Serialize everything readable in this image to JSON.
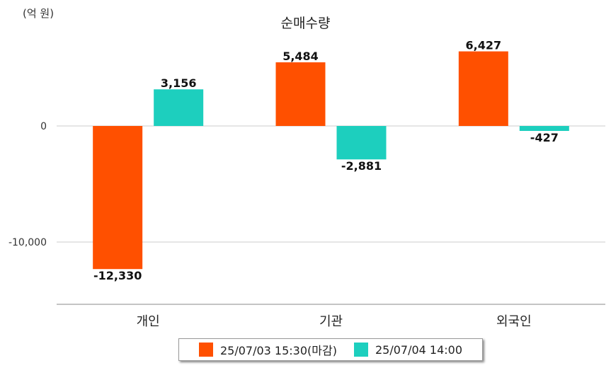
{
  "chart_data": {
    "type": "bar",
    "title": "순매수량",
    "unit_label": "(억 원)",
    "categories": [
      "개인",
      "기관",
      "외국인"
    ],
    "series": [
      {
        "name": "25/07/03 15:30(마감)",
        "values": [
          -12330,
          5484,
          6427
        ],
        "labels": [
          "-12,330",
          "5,484",
          "6,427"
        ],
        "color": "#FF5000"
      },
      {
        "name": "25/07/04 14:00",
        "values": [
          3156,
          -2881,
          -427
        ],
        "labels": [
          "3,156",
          "-2,881",
          "-427"
        ],
        "color": "#1DCFBE"
      }
    ],
    "y_ticks": [
      0,
      -10000
    ],
    "y_tick_labels": [
      "0",
      "-10,000"
    ],
    "ylim": [
      -15500,
      8000
    ],
    "grid": true,
    "legend_position": "bottom"
  }
}
